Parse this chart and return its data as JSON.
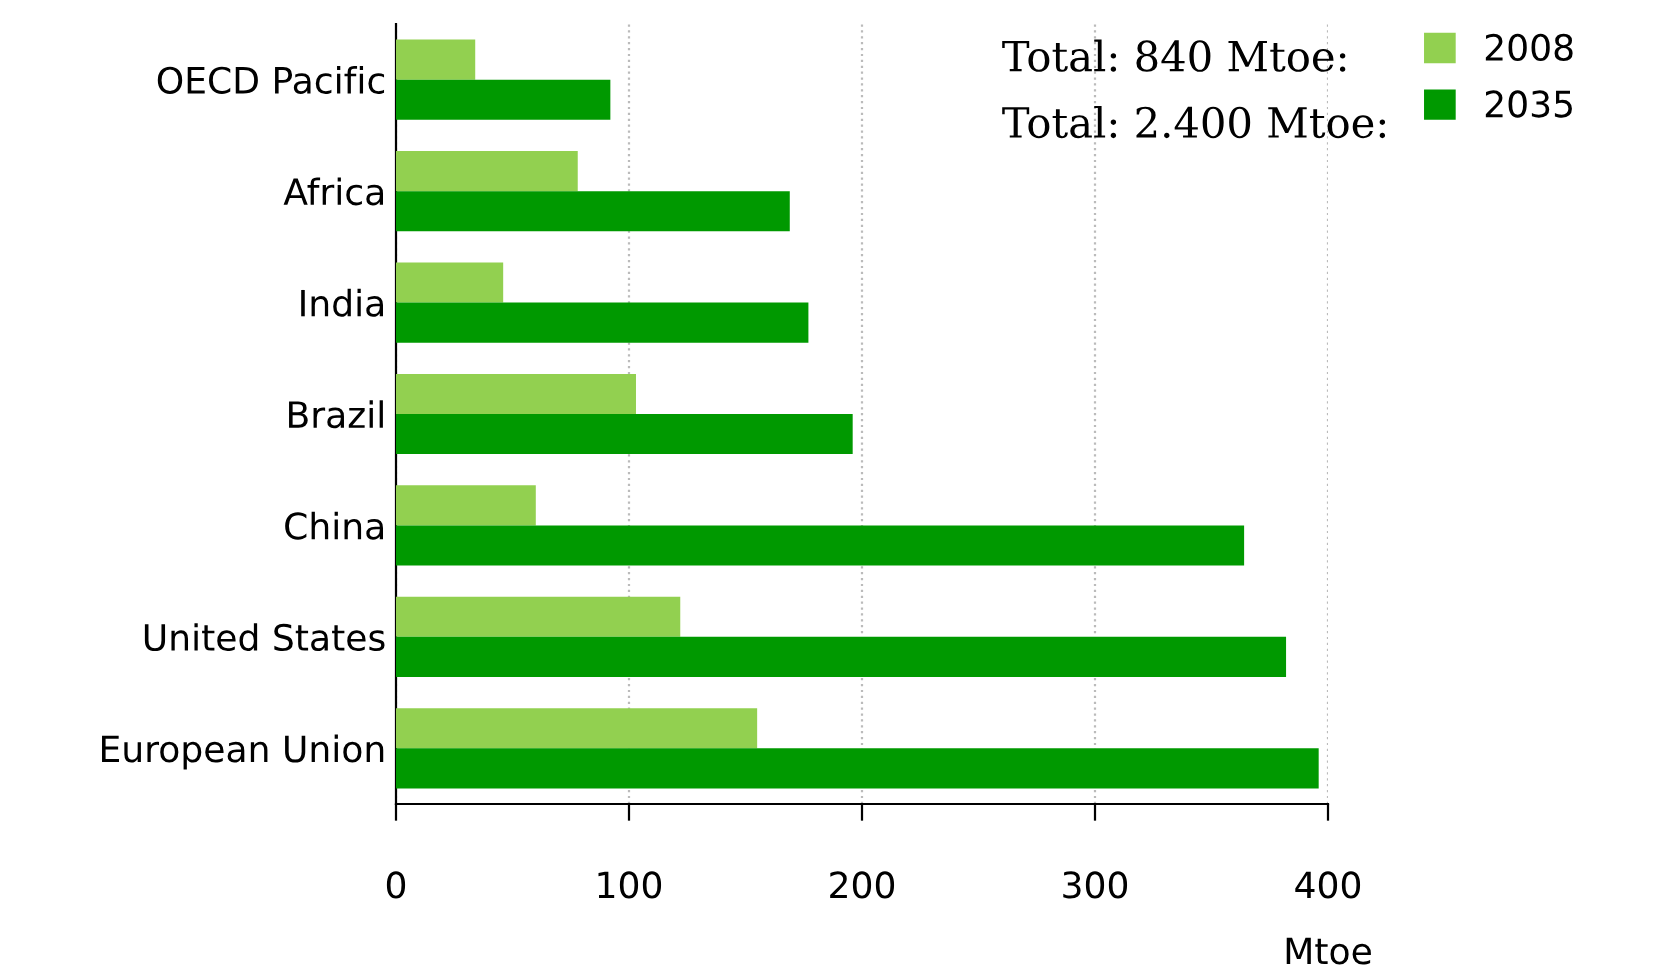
{
  "chart_data": {
    "type": "bar",
    "orientation": "horizontal",
    "xlabel": "Mtoe",
    "categories": [
      "OECD Pacific",
      "Africa",
      "India",
      "Brazil",
      "China",
      "United States",
      "European Union"
    ],
    "series": [
      {
        "name": "2008",
        "color": "#92d050",
        "values": [
          34,
          78,
          46,
          103,
          60,
          122,
          155
        ]
      },
      {
        "name": "2035",
        "color": "#009900",
        "values": [
          92,
          169,
          177,
          196,
          364,
          382,
          396
        ]
      }
    ],
    "xlim": [
      0,
      400
    ],
    "xticks": [
      0,
      100,
      200,
      300,
      400
    ],
    "grid": "x",
    "legend": "top right",
    "annotations": [
      "Total: 840 Mtoe:",
      "Total: 2.400 Mtoe:"
    ]
  }
}
